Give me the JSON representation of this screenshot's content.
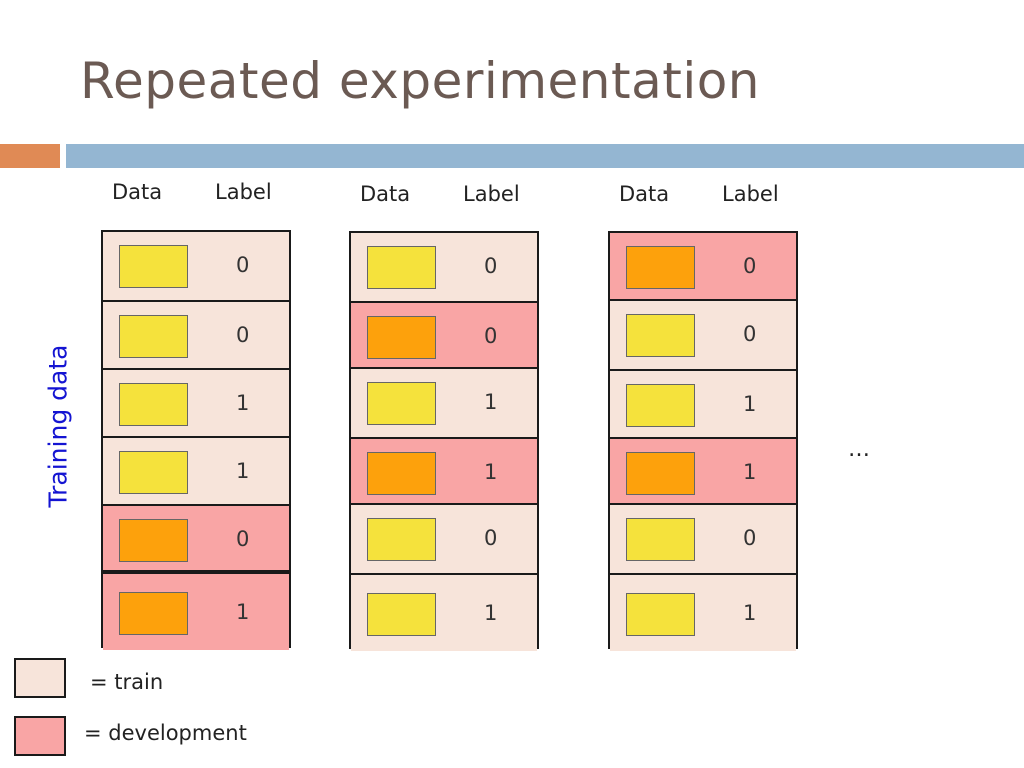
{
  "title": "Repeated experimentation",
  "y_axis_label": "Training data",
  "ellipsis": "…",
  "columns": [
    {
      "data_header": "Data",
      "label_header": "Label",
      "rows": [
        {
          "label": "0",
          "role": "train"
        },
        {
          "label": "0",
          "role": "train"
        },
        {
          "label": "1",
          "role": "train"
        },
        {
          "label": "1",
          "role": "train"
        },
        {
          "label": "0",
          "role": "development"
        },
        {
          "label": "1",
          "role": "development"
        }
      ]
    },
    {
      "data_header": "Data",
      "label_header": "Label",
      "rows": [
        {
          "label": "0",
          "role": "train"
        },
        {
          "label": "0",
          "role": "development"
        },
        {
          "label": "1",
          "role": "train"
        },
        {
          "label": "1",
          "role": "development"
        },
        {
          "label": "0",
          "role": "train"
        },
        {
          "label": "1",
          "role": "train"
        }
      ]
    },
    {
      "data_header": "Data",
      "label_header": "Label",
      "rows": [
        {
          "label": "0",
          "role": "development"
        },
        {
          "label": "0",
          "role": "train"
        },
        {
          "label": "1",
          "role": "train"
        },
        {
          "label": "1",
          "role": "development"
        },
        {
          "label": "0",
          "role": "train"
        },
        {
          "label": "1",
          "role": "train"
        }
      ]
    }
  ],
  "legend": {
    "train_label": "= train",
    "dev_label": "= development"
  },
  "colors": {
    "train": "#f7e4da",
    "development": "#f9a5a5",
    "train_square": "#f5e23c",
    "dev_square": "#fda10c"
  }
}
